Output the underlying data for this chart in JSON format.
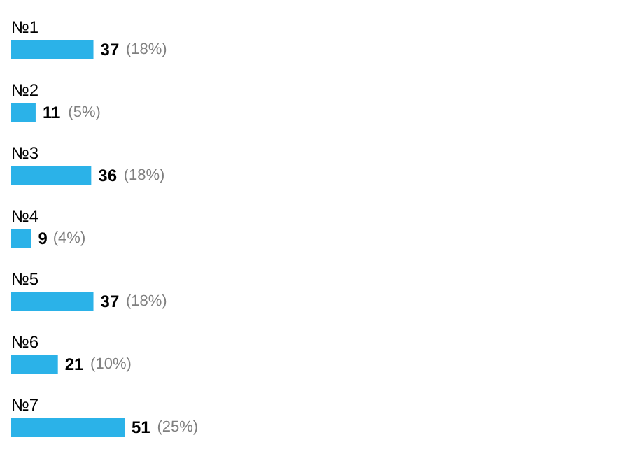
{
  "chart_data": {
    "type": "bar",
    "orientation": "horizontal",
    "categories": [
      "№1",
      "№2",
      "№3",
      "№4",
      "№5",
      "№6",
      "№7"
    ],
    "values": [
      37,
      11,
      36,
      9,
      37,
      21,
      51
    ],
    "color": "#2bb2e8",
    "data_labels": true,
    "annotations": [
      {
        "text": "(18%)",
        "x": 37,
        "y": "№1"
      },
      {
        "text": "(5%)",
        "x": 11,
        "y": "№2"
      },
      {
        "text": "(18%)",
        "x": 36,
        "y": "№3"
      },
      {
        "text": "(4%)",
        "x": 9,
        "y": "№4"
      },
      {
        "text": "(18%)",
        "x": 37,
        "y": "№5"
      },
      {
        "text": "(10%)",
        "x": 21,
        "y": "№6"
      },
      {
        "text": "(25%)",
        "x": 51,
        "y": "№7"
      }
    ]
  }
}
